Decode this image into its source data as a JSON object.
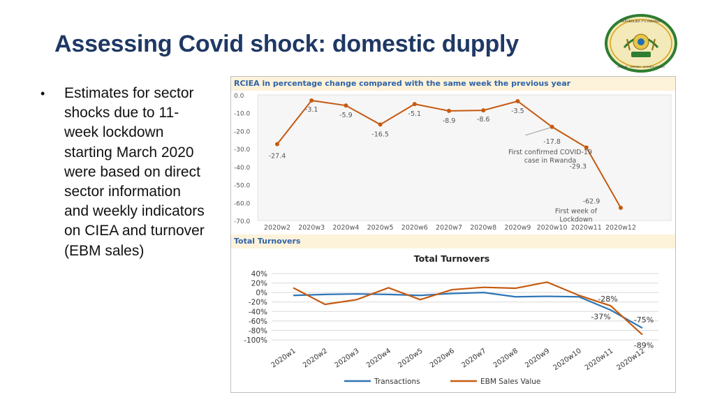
{
  "slide": {
    "title": "Assessing Covid shock: domestic dupply",
    "bullet_text": "Estimates for sector shocks due to 11-week lockdown starting March 2020 were based on direct sector information and weekly indicators on CIEA and turnover (EBM sales)",
    "bullet_symbol": "•"
  },
  "logo": {
    "text_top": "REPUBULIKA Y'U RWANDA",
    "text_bottom": "UBUMWE · UMURIMO · GUKUNDA IGIHUGU"
  },
  "colors": {
    "title": "#1f3864",
    "line": "#c55a11",
    "transactions": "#2e75b6",
    "ebm": "#c55a11",
    "header_bg": "#fdf2da",
    "header_text": "#2e63a8"
  },
  "chart_data": [
    {
      "type": "line",
      "header": "RCIEA in percentage change compared with the same week the previous year",
      "categories": [
        "2020w2",
        "2020w3",
        "2020w4",
        "2020w5",
        "2020w6",
        "2020w7",
        "2020w8",
        "2020w9",
        "2020w10",
        "2020w11",
        "2020w12"
      ],
      "values": [
        -27.4,
        -3.1,
        -5.9,
        -16.5,
        -5.1,
        -8.9,
        -8.6,
        -3.5,
        -17.8,
        -29.3,
        -62.9
      ],
      "data_labels": [
        "-27.4",
        "-3.1",
        "-5.9",
        "-16.5",
        "-5.1",
        "-8.9",
        "-8.6",
        "-3.5",
        "-17.8",
        "-29.3",
        "-62.9"
      ],
      "y_ticks": [
        "0.0",
        "-10.0",
        "-20.0",
        "-30.0",
        "-40.0",
        "-50.0",
        "-60.0",
        "-70.0"
      ],
      "ylim": [
        -70,
        0
      ],
      "annotations": [
        {
          "week": "2020w10",
          "text_lines": [
            "First confirmed COVID-19",
            "case in Rwanda"
          ]
        },
        {
          "week": "2020w12",
          "text_lines": [
            "First week of",
            "Lockdown"
          ]
        }
      ]
    },
    {
      "type": "line",
      "header": "Total Turnovers",
      "title": "Total Turnovers",
      "categories": [
        "2020w1",
        "2020w2",
        "2020w3",
        "2020w4",
        "2020w5",
        "2020w6",
        "2020w7",
        "2020w8",
        "2020w9",
        "2020w10",
        "2020w11",
        "2020w12"
      ],
      "y_ticks": [
        "40%",
        "20%",
        "0%",
        "-20%",
        "-40%",
        "-60%",
        "-80%",
        "-100%"
      ],
      "ylim": [
        -100,
        40
      ],
      "series": [
        {
          "name": "Transactions",
          "values": [
            -6,
            -4,
            -3,
            -4,
            -6,
            -2,
            0,
            -9,
            -8,
            -9,
            -37,
            -75
          ]
        },
        {
          "name": "EBM Sales Value",
          "values": [
            10,
            -25,
            -15,
            10,
            -15,
            6,
            11,
            9,
            22,
            -6,
            -28,
            -89
          ]
        }
      ],
      "data_labels": [
        {
          "series": "EBM Sales Value",
          "week": "2020w11",
          "text": "-28%"
        },
        {
          "series": "Transactions",
          "week": "2020w11",
          "text": "-37%"
        },
        {
          "series": "Transactions",
          "week": "2020w12",
          "text": "-75%"
        },
        {
          "series": "EBM Sales Value",
          "week": "2020w12",
          "text": "-89%"
        }
      ],
      "legend": [
        "Transactions",
        "EBM Sales Value"
      ],
      "legend_position": "bottom",
      "grid": true
    }
  ]
}
